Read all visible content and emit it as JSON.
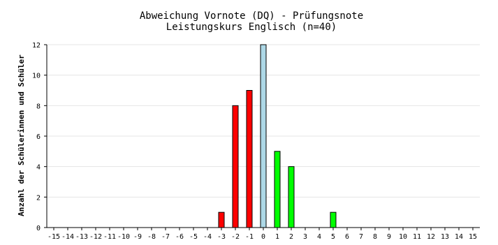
{
  "chart_data": {
    "type": "bar",
    "title": "Abweichung Vornote (DQ) - Prüfungsnote",
    "subtitle": "Leistungskurs Englisch (n=40)",
    "xlabel": "",
    "ylabel": "Anzahl der Schülerinnen und Schüler",
    "categories": [
      "-15",
      "-14",
      "-13",
      "-12",
      "-11",
      "-10",
      "-9",
      "-8",
      "-7",
      "-6",
      "-5",
      "-4",
      "-3",
      "-2",
      "-1",
      "0",
      "1",
      "2",
      "3",
      "4",
      "5",
      "6",
      "7",
      "8",
      "9",
      "10",
      "11",
      "12",
      "13",
      "14",
      "15"
    ],
    "values": [
      0,
      0,
      0,
      0,
      0,
      0,
      0,
      0,
      0,
      0,
      0,
      0,
      1,
      8,
      9,
      12,
      5,
      4,
      0,
      0,
      1,
      0,
      0,
      0,
      0,
      0,
      0,
      0,
      0,
      0,
      0
    ],
    "bar_colors": {
      "negative": "#ff0000",
      "zero": "#add8e6",
      "positive": "#00ff00"
    },
    "ylim": [
      0,
      12
    ],
    "yticks": [
      0,
      2,
      4,
      6,
      8,
      10,
      12
    ],
    "grid": true,
    "legend": "none"
  }
}
